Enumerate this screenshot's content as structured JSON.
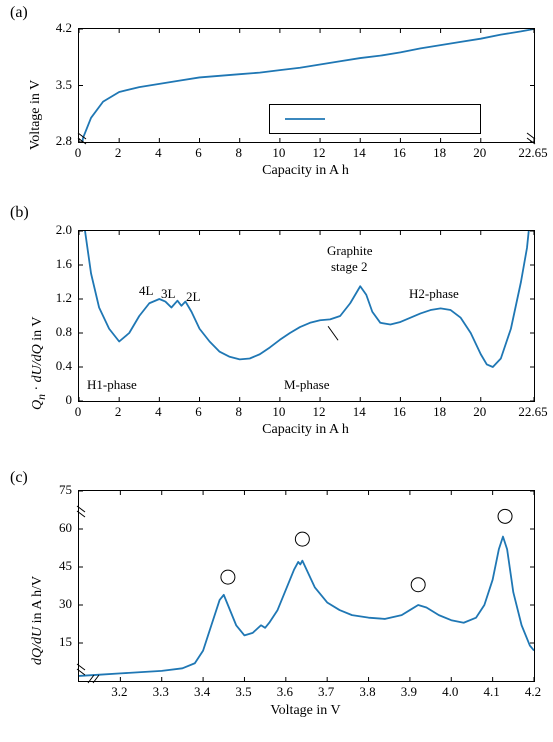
{
  "colors": {
    "line": "#1f77b4",
    "axis": "#000000",
    "text": "#000000",
    "background": "#ffffff"
  },
  "typography": {
    "label_fontsize": 14,
    "tick_fontsize": 13,
    "panel_label_fontsize": 16,
    "font_family": "Times New Roman"
  },
  "panel_labels": {
    "a": "(a)",
    "b": "(b)",
    "c": "(c)"
  },
  "chart_a": {
    "type": "line",
    "xlabel": "Capacity in A h",
    "ylabel": "Voltage in V",
    "xlim": [
      0,
      22.65
    ],
    "ylim": [
      2.8,
      4.2
    ],
    "xticks": [
      0,
      2,
      4,
      6,
      8,
      10,
      12,
      14,
      16,
      18,
      20,
      22.65
    ],
    "xtick_labels": [
      "0",
      "2",
      "4",
      "6",
      "8",
      "10",
      "12",
      "14",
      "16",
      "18",
      "20",
      "22.65"
    ],
    "yticks": [
      2.8,
      3.5,
      4.2
    ],
    "ytick_labels": [
      "2.8",
      "3.5",
      "4.2"
    ],
    "line_width": 1.8,
    "line_color": "#1f77b4",
    "axis_break": {
      "y_low": true
    },
    "legend": {
      "present": true,
      "line_color": "#1f77b4",
      "box_border": "#000000"
    },
    "series": [
      {
        "x": 0,
        "y": 2.5
      },
      {
        "x": 0.2,
        "y": 2.85
      },
      {
        "x": 0.6,
        "y": 3.1
      },
      {
        "x": 1.2,
        "y": 3.3
      },
      {
        "x": 2.0,
        "y": 3.42
      },
      {
        "x": 3.0,
        "y": 3.48
      },
      {
        "x": 4.0,
        "y": 3.52
      },
      {
        "x": 5.0,
        "y": 3.56
      },
      {
        "x": 6.0,
        "y": 3.6
      },
      {
        "x": 7.0,
        "y": 3.62
      },
      {
        "x": 8.0,
        "y": 3.64
      },
      {
        "x": 9.0,
        "y": 3.66
      },
      {
        "x": 10.0,
        "y": 3.69
      },
      {
        "x": 11.0,
        "y": 3.72
      },
      {
        "x": 12.0,
        "y": 3.76
      },
      {
        "x": 13.0,
        "y": 3.8
      },
      {
        "x": 14.0,
        "y": 3.84
      },
      {
        "x": 15.0,
        "y": 3.87
      },
      {
        "x": 16.0,
        "y": 3.91
      },
      {
        "x": 17.0,
        "y": 3.96
      },
      {
        "x": 18.0,
        "y": 4.0
      },
      {
        "x": 19.0,
        "y": 4.04
      },
      {
        "x": 20.0,
        "y": 4.08
      },
      {
        "x": 21.0,
        "y": 4.13
      },
      {
        "x": 22.0,
        "y": 4.17
      },
      {
        "x": 22.65,
        "y": 4.2
      }
    ]
  },
  "chart_b": {
    "type": "line",
    "xlabel": "Capacity in A h",
    "ylabel_html": "<i>Q<sub>n</sub></i> · <i>dU/dQ</i> in V",
    "xlim": [
      0,
      22.65
    ],
    "ylim": [
      0,
      2.0
    ],
    "xticks": [
      0,
      2,
      4,
      6,
      8,
      10,
      12,
      14,
      16,
      18,
      20,
      22.65
    ],
    "xtick_labels": [
      "0",
      "2",
      "4",
      "6",
      "8",
      "10",
      "12",
      "14",
      "16",
      "18",
      "20",
      "22.65"
    ],
    "yticks": [
      0,
      0.4,
      0.8,
      1.2,
      1.6,
      2.0
    ],
    "ytick_labels": [
      "0",
      "0.4",
      "0.8",
      "1.2",
      "1.6",
      "2.0"
    ],
    "line_width": 1.8,
    "line_color": "#1f77b4",
    "annotations": {
      "l4L": "4L",
      "l3L": "3L",
      "l2L": "2L",
      "graphite_stage_2_line1": "Graphite",
      "graphite_stage_2_line2": "stage 2",
      "h2_phase": "H2-phase",
      "h1_phase": "H1-phase",
      "m_phase": "M-phase"
    },
    "series": [
      {
        "x": 0,
        "y": 2.6
      },
      {
        "x": 0.3,
        "y": 2.0
      },
      {
        "x": 0.6,
        "y": 1.5
      },
      {
        "x": 1.0,
        "y": 1.1
      },
      {
        "x": 1.5,
        "y": 0.85
      },
      {
        "x": 2.0,
        "y": 0.7
      },
      {
        "x": 2.5,
        "y": 0.8
      },
      {
        "x": 3.0,
        "y": 1.0
      },
      {
        "x": 3.5,
        "y": 1.15
      },
      {
        "x": 4.0,
        "y": 1.2
      },
      {
        "x": 4.3,
        "y": 1.17
      },
      {
        "x": 4.6,
        "y": 1.1
      },
      {
        "x": 4.9,
        "y": 1.18
      },
      {
        "x": 5.1,
        "y": 1.12
      },
      {
        "x": 5.3,
        "y": 1.17
      },
      {
        "x": 5.6,
        "y": 1.05
      },
      {
        "x": 6.0,
        "y": 0.85
      },
      {
        "x": 6.5,
        "y": 0.7
      },
      {
        "x": 7.0,
        "y": 0.58
      },
      {
        "x": 7.5,
        "y": 0.52
      },
      {
        "x": 8.0,
        "y": 0.49
      },
      {
        "x": 8.5,
        "y": 0.5
      },
      {
        "x": 9.0,
        "y": 0.55
      },
      {
        "x": 9.5,
        "y": 0.63
      },
      {
        "x": 10.0,
        "y": 0.72
      },
      {
        "x": 10.5,
        "y": 0.8
      },
      {
        "x": 11.0,
        "y": 0.87
      },
      {
        "x": 11.5,
        "y": 0.92
      },
      {
        "x": 12.0,
        "y": 0.95
      },
      {
        "x": 12.5,
        "y": 0.96
      },
      {
        "x": 13.0,
        "y": 1.0
      },
      {
        "x": 13.5,
        "y": 1.15
      },
      {
        "x": 14.0,
        "y": 1.35
      },
      {
        "x": 14.3,
        "y": 1.25
      },
      {
        "x": 14.6,
        "y": 1.05
      },
      {
        "x": 15.0,
        "y": 0.92
      },
      {
        "x": 15.5,
        "y": 0.9
      },
      {
        "x": 16.0,
        "y": 0.93
      },
      {
        "x": 16.5,
        "y": 0.98
      },
      {
        "x": 17.0,
        "y": 1.03
      },
      {
        "x": 17.5,
        "y": 1.07
      },
      {
        "x": 18.0,
        "y": 1.09
      },
      {
        "x": 18.5,
        "y": 1.07
      },
      {
        "x": 19.0,
        "y": 0.98
      },
      {
        "x": 19.5,
        "y": 0.8
      },
      {
        "x": 20.0,
        "y": 0.55
      },
      {
        "x": 20.3,
        "y": 0.43
      },
      {
        "x": 20.6,
        "y": 0.4
      },
      {
        "x": 21.0,
        "y": 0.5
      },
      {
        "x": 21.5,
        "y": 0.85
      },
      {
        "x": 22.0,
        "y": 1.4
      },
      {
        "x": 22.3,
        "y": 1.8
      },
      {
        "x": 22.65,
        "y": 2.6
      }
    ]
  },
  "chart_c": {
    "type": "line",
    "xlabel": "Voltage in V",
    "ylabel_html": "<i>dQ/dU</i> in A h/V",
    "xlim": [
      3.1,
      4.2
    ],
    "ylim": [
      0,
      75
    ],
    "xticks": [
      3.2,
      3.3,
      3.4,
      3.5,
      3.6,
      3.7,
      3.8,
      3.9,
      4.0,
      4.1,
      4.2
    ],
    "xtick_labels": [
      "3.2",
      "3.3",
      "3.4",
      "3.5",
      "3.6",
      "3.7",
      "3.8",
      "3.9",
      "4.0",
      "4.1",
      "4.2"
    ],
    "yticks": [
      15,
      30,
      45,
      60,
      75
    ],
    "ytick_labels": [
      "15",
      "30",
      "45",
      "60",
      "75"
    ],
    "line_width": 1.8,
    "line_color": "#1f77b4",
    "axis_break": {
      "x_low": true,
      "y_near_top": true
    },
    "circle_markers": [
      {
        "x": 3.46,
        "y": 41,
        "r": 7
      },
      {
        "x": 3.64,
        "y": 56,
        "r": 7
      },
      {
        "x": 3.92,
        "y": 38,
        "r": 7
      },
      {
        "x": 4.13,
        "y": 65,
        "r": 7
      }
    ],
    "series": [
      {
        "x": 3.1,
        "y": 2
      },
      {
        "x": 3.15,
        "y": 2.5
      },
      {
        "x": 3.2,
        "y": 3
      },
      {
        "x": 3.25,
        "y": 3.5
      },
      {
        "x": 3.3,
        "y": 4
      },
      {
        "x": 3.35,
        "y": 5
      },
      {
        "x": 3.38,
        "y": 7
      },
      {
        "x": 3.4,
        "y": 12
      },
      {
        "x": 3.42,
        "y": 22
      },
      {
        "x": 3.44,
        "y": 32
      },
      {
        "x": 3.45,
        "y": 34
      },
      {
        "x": 3.46,
        "y": 30
      },
      {
        "x": 3.48,
        "y": 22
      },
      {
        "x": 3.5,
        "y": 18
      },
      {
        "x": 3.52,
        "y": 19
      },
      {
        "x": 3.54,
        "y": 22
      },
      {
        "x": 3.55,
        "y": 21
      },
      {
        "x": 3.56,
        "y": 23
      },
      {
        "x": 3.58,
        "y": 28
      },
      {
        "x": 3.6,
        "y": 36
      },
      {
        "x": 3.62,
        "y": 44
      },
      {
        "x": 3.63,
        "y": 47
      },
      {
        "x": 3.635,
        "y": 46
      },
      {
        "x": 3.64,
        "y": 47.5
      },
      {
        "x": 3.65,
        "y": 44
      },
      {
        "x": 3.67,
        "y": 37
      },
      {
        "x": 3.7,
        "y": 31
      },
      {
        "x": 3.73,
        "y": 28
      },
      {
        "x": 3.76,
        "y": 26
      },
      {
        "x": 3.8,
        "y": 25
      },
      {
        "x": 3.84,
        "y": 24.5
      },
      {
        "x": 3.88,
        "y": 26
      },
      {
        "x": 3.9,
        "y": 28
      },
      {
        "x": 3.92,
        "y": 30
      },
      {
        "x": 3.94,
        "y": 29
      },
      {
        "x": 3.97,
        "y": 26
      },
      {
        "x": 4.0,
        "y": 24
      },
      {
        "x": 4.03,
        "y": 23
      },
      {
        "x": 4.06,
        "y": 25
      },
      {
        "x": 4.08,
        "y": 30
      },
      {
        "x": 4.1,
        "y": 40
      },
      {
        "x": 4.115,
        "y": 52
      },
      {
        "x": 4.125,
        "y": 57
      },
      {
        "x": 4.135,
        "y": 52
      },
      {
        "x": 4.15,
        "y": 35
      },
      {
        "x": 4.17,
        "y": 22
      },
      {
        "x": 4.19,
        "y": 14
      },
      {
        "x": 4.2,
        "y": 12
      }
    ]
  }
}
